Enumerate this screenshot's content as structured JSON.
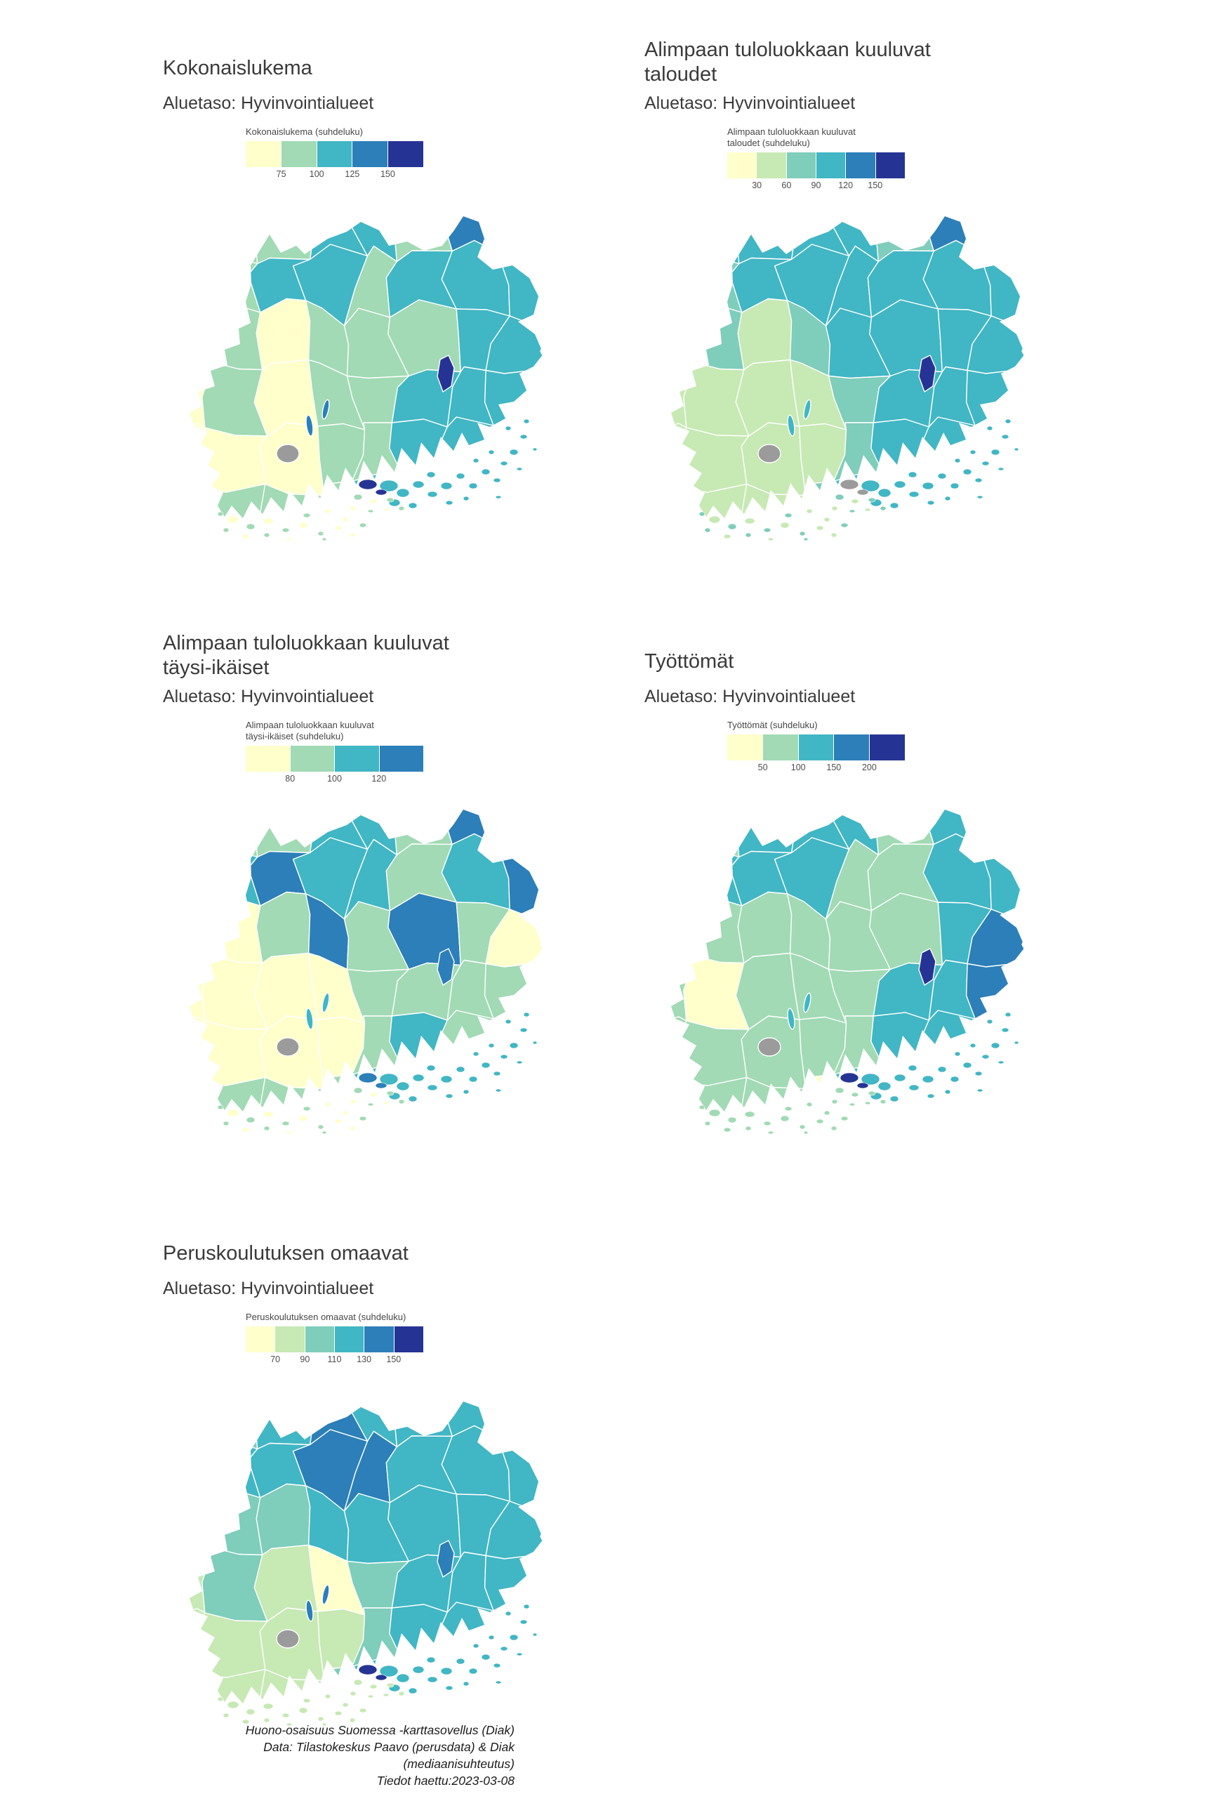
{
  "page": {
    "background": "#ffffff",
    "border_color": "#ffffff"
  },
  "nodata_color": "#9b9b9b",
  "footer": {
    "lines": [
      "Huono-osaisuus Suomessa -karttasovellus (Diak)",
      "Data: Tilastokeskus Paavo (perusdata) & Diak (mediaanisuhteutus)",
      "Tiedot haettu:2023-03-08"
    ]
  },
  "panels": [
    {
      "title": "Kokonaislukema",
      "subtitle": "Aluetaso: Hyvinvointialueet",
      "legend": {
        "title": "Kokonaislukema (suhdeluku)",
        "colors": [
          "#ffffcc",
          "#a1dab4",
          "#41b6c4",
          "#2c7fb8",
          "#253494"
        ],
        "ticks": [
          "75",
          "100",
          "125",
          "150"
        ]
      },
      "map": {
        "cells": "111221321122122201011122010112220001122201112222",
        "east": 4,
        "south": 4,
        "sliver": 3,
        "sw": [
          0,
          1
        ],
        "se": 2
      }
    },
    {
      "title": "Alimpaan tuloluokkaan kuuluvat\ntaloudet",
      "subtitle": "Aluetaso: Hyvinvointialueet",
      "legend": {
        "title": "Alimpaan tuloluokkaan kuuluvat\ntaloudet (suhdeluku)",
        "colors": [
          "#ffffcc",
          "#c7e9b4",
          "#7fcdbb",
          "#41b6c4",
          "#2c7fb8",
          "#253494"
        ],
        "ticks": [
          "30",
          "60",
          "90",
          "120",
          "150"
        ]
      },
      "map": {
        "cells": "333332432233333312123333111123331111233311123333",
        "east": 5,
        "south": -1,
        "sliver": 3,
        "sw": [
          1,
          2
        ],
        "se": 3
      }
    },
    {
      "title": "Alimpaan tuloluokkaan kuuluvat\ntäysi-ikäiset",
      "subtitle": "Aluetaso: Hyvinvointialueet",
      "legend": {
        "title": "Alimpaan tuloluokkaan kuuluvat\ntäysi-ikäiset (suhdeluku)",
        "colors": [
          "#ffffcc",
          "#a1dab4",
          "#41b6c4",
          "#2c7fb8"
        ],
        "ticks": [
          "80",
          "100",
          "120"
        ]
      },
      "map": {
        "cells": "111221311232212310131310000011110000121101112311",
        "east": 3,
        "south": 3,
        "sliver": 2,
        "sw": [
          0,
          1
        ],
        "se": 2
      }
    },
    {
      "title": "Työttömät",
      "subtitle": "Aluetaso: Hyvinvointialueet",
      "legend": {
        "title": "Työttömät (suhdeluku)",
        "colors": [
          "#ffffcc",
          "#a1dab4",
          "#41b6c4",
          "#2c7fb8",
          "#253494"
        ],
        "ticks": [
          "50",
          "100",
          "150",
          "200"
        ]
      },
      "map": {
        "cells": "212221222222112211111123101112231111122211102222",
        "east": 4,
        "south": 4,
        "sliver": 2,
        "sw": [
          1,
          1
        ],
        "se": 2
      }
    },
    {
      "title": "Peruskoulutuksen omaavat",
      "subtitle": "Aluetaso: Hyvinvointialueet",
      "legend": {
        "title": "Peruskoulutuksen omaavat (suhdeluku)",
        "colors": [
          "#ffffcc",
          "#c7e9b4",
          "#7fcdbb",
          "#41b6c4",
          "#2c7fb8",
          "#253494"
        ],
        "ticks": [
          "70",
          "90",
          "110",
          "130",
          "150"
        ]
      },
      "map": {
        "cells": "223433322334433322233333121023331111233311123333",
        "east": 4,
        "south": 5,
        "sliver": 4,
        "sw": [
          1,
          1
        ],
        "se": 3
      }
    }
  ]
}
